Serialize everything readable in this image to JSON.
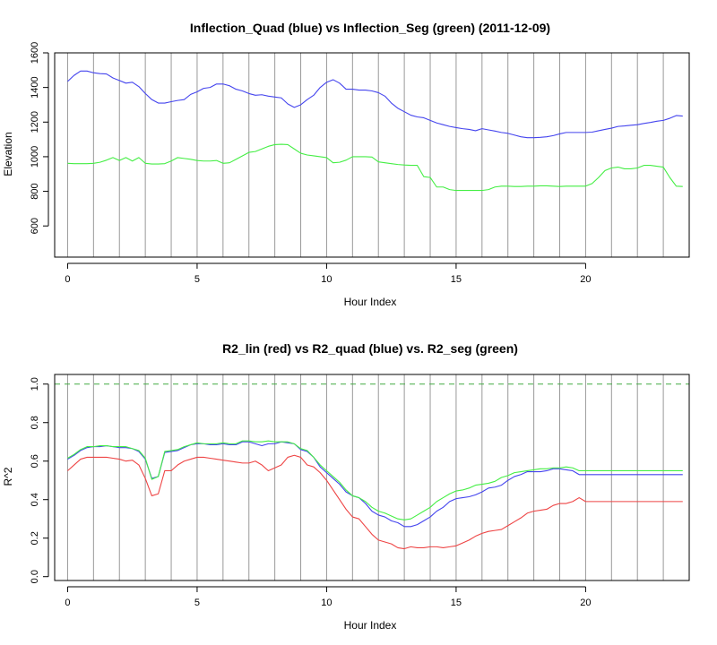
{
  "chart_data": [
    {
      "type": "line",
      "title": "Inflection_Quad (blue) vs Inflection_Seg (green) (2011-12-09)",
      "xlabel": "Hour Index",
      "ylabel": "Elevation",
      "xlim": [
        -0.5,
        24.0
      ],
      "ylim": [
        420,
        1600
      ],
      "xticks": [
        0,
        5,
        10,
        15,
        20
      ],
      "yticks": [
        600,
        800,
        1000,
        1200,
        1400,
        1600
      ],
      "vlines": [
        0,
        1,
        2,
        3,
        4,
        5,
        6,
        7,
        8,
        9,
        10,
        11,
        12,
        13,
        14,
        15,
        16,
        17,
        18,
        19,
        20,
        21,
        22,
        23
      ],
      "vline_color": "#999999",
      "grid": false,
      "x": [
        0,
        0.25,
        0.5,
        0.75,
        1,
        1.25,
        1.5,
        1.75,
        2,
        2.25,
        2.5,
        2.75,
        3,
        3.25,
        3.5,
        3.75,
        4,
        4.25,
        4.5,
        4.75,
        5,
        5.25,
        5.5,
        5.75,
        6,
        6.25,
        6.5,
        6.75,
        7,
        7.25,
        7.5,
        7.75,
        8,
        8.25,
        8.5,
        8.75,
        9,
        9.25,
        9.5,
        9.75,
        10,
        10.25,
        10.5,
        10.75,
        11,
        11.25,
        11.5,
        11.75,
        12,
        12.25,
        12.5,
        12.75,
        13,
        13.25,
        13.5,
        13.75,
        14,
        14.25,
        14.5,
        14.75,
        15,
        15.25,
        15.5,
        15.75,
        16,
        16.25,
        16.5,
        16.75,
        17,
        17.25,
        17.5,
        17.75,
        18,
        18.25,
        18.5,
        18.75,
        19,
        19.25,
        19.5,
        19.75,
        20,
        20.25,
        20.5,
        20.75,
        21,
        21.25,
        21.5,
        21.75,
        22,
        22.25,
        22.5,
        22.75,
        23,
        23.25,
        23.5,
        23.75
      ],
      "series": [
        {
          "color": "#4444ee",
          "values": [
            1435,
            1470,
            1495,
            1495,
            1485,
            1480,
            1478,
            1455,
            1440,
            1425,
            1430,
            1405,
            1365,
            1330,
            1310,
            1310,
            1318,
            1325,
            1330,
            1360,
            1375,
            1395,
            1400,
            1420,
            1420,
            1410,
            1390,
            1380,
            1365,
            1355,
            1358,
            1350,
            1345,
            1340,
            1305,
            1285,
            1300,
            1330,
            1355,
            1400,
            1430,
            1445,
            1425,
            1390,
            1390,
            1385,
            1385,
            1380,
            1370,
            1350,
            1310,
            1280,
            1260,
            1240,
            1230,
            1225,
            1210,
            1195,
            1185,
            1175,
            1168,
            1162,
            1158,
            1150,
            1162,
            1155,
            1148,
            1140,
            1135,
            1125,
            1115,
            1110,
            1110,
            1112,
            1115,
            1122,
            1132,
            1140,
            1140,
            1140,
            1140,
            1142,
            1150,
            1158,
            1165,
            1175,
            1178,
            1182,
            1185,
            1192,
            1198,
            1205,
            1210,
            1222,
            1238,
            1235
          ]
        },
        {
          "color": "#44ee44",
          "values": [
            962,
            960,
            960,
            960,
            962,
            968,
            980,
            995,
            978,
            995,
            975,
            995,
            962,
            958,
            958,
            960,
            975,
            995,
            990,
            985,
            978,
            975,
            975,
            978,
            962,
            965,
            985,
            1005,
            1025,
            1030,
            1045,
            1060,
            1070,
            1072,
            1070,
            1045,
            1020,
            1010,
            1005,
            1000,
            995,
            965,
            968,
            980,
            1000,
            1000,
            1000,
            998,
            970,
            965,
            960,
            955,
            952,
            950,
            950,
            885,
            880,
            825,
            825,
            810,
            805,
            805,
            805,
            805,
            805,
            810,
            825,
            830,
            830,
            828,
            828,
            830,
            830,
            832,
            832,
            830,
            828,
            830,
            830,
            830,
            830,
            845,
            880,
            920,
            935,
            940,
            930,
            930,
            935,
            950,
            950,
            945,
            940,
            880,
            830,
            828
          ]
        }
      ]
    },
    {
      "type": "line",
      "title": "R2_lin (red) vs R2_quad (blue) vs. R2_seg (green)",
      "xlabel": "Hour Index",
      "ylabel": "R^2",
      "xlim": [
        -0.5,
        24.0
      ],
      "ylim": [
        -0.02,
        1.05
      ],
      "xticks": [
        0,
        5,
        10,
        15,
        20
      ],
      "yticks": [
        0.0,
        0.2,
        0.4,
        0.6,
        0.8,
        1.0
      ],
      "ytick_labels": [
        "0.0",
        "0.2",
        "0.4",
        "0.6",
        "0.8",
        "1.0"
      ],
      "vlines": [
        0,
        1,
        2,
        3,
        4,
        5,
        6,
        7,
        8,
        9,
        10,
        11,
        12,
        13,
        14,
        15,
        16,
        17,
        18,
        19,
        20,
        21,
        22,
        23
      ],
      "vline_color": "#999999",
      "grid": false,
      "hline": {
        "y": 1.0,
        "color": "#44aa44",
        "style": "dashed"
      },
      "x": [
        0,
        0.25,
        0.5,
        0.75,
        1,
        1.25,
        1.5,
        1.75,
        2,
        2.25,
        2.5,
        2.75,
        3,
        3.25,
        3.5,
        3.75,
        4,
        4.25,
        4.5,
        4.75,
        5,
        5.25,
        5.5,
        5.75,
        6,
        6.25,
        6.5,
        6.75,
        7,
        7.25,
        7.5,
        7.75,
        8,
        8.25,
        8.5,
        8.75,
        9,
        9.25,
        9.5,
        9.75,
        10,
        10.25,
        10.5,
        10.75,
        11,
        11.25,
        11.5,
        11.75,
        12,
        12.25,
        12.5,
        12.75,
        13,
        13.25,
        13.5,
        13.75,
        14,
        14.25,
        14.5,
        14.75,
        15,
        15.25,
        15.5,
        15.75,
        16,
        16.25,
        16.5,
        16.75,
        17,
        17.25,
        17.5,
        17.75,
        18,
        18.25,
        18.5,
        18.75,
        19,
        19.25,
        19.5,
        19.75,
        20,
        20.25,
        20.5,
        20.75,
        21,
        21.25,
        21.5,
        21.75,
        22,
        22.25,
        22.5,
        22.75,
        23,
        23.25,
        23.5,
        23.75
      ],
      "series": [
        {
          "color": "#ee4444",
          "values": [
            0.55,
            0.58,
            0.61,
            0.62,
            0.62,
            0.62,
            0.62,
            0.615,
            0.61,
            0.6,
            0.605,
            0.58,
            0.51,
            0.42,
            0.43,
            0.55,
            0.55,
            0.58,
            0.6,
            0.61,
            0.62,
            0.62,
            0.615,
            0.61,
            0.605,
            0.6,
            0.595,
            0.59,
            0.59,
            0.6,
            0.58,
            0.55,
            0.565,
            0.58,
            0.62,
            0.63,
            0.62,
            0.58,
            0.57,
            0.54,
            0.5,
            0.45,
            0.4,
            0.35,
            0.31,
            0.3,
            0.26,
            0.22,
            0.19,
            0.18,
            0.17,
            0.15,
            0.145,
            0.155,
            0.15,
            0.15,
            0.155,
            0.155,
            0.15,
            0.155,
            0.16,
            0.175,
            0.19,
            0.21,
            0.225,
            0.235,
            0.24,
            0.245,
            0.265,
            0.285,
            0.305,
            0.33,
            0.34,
            0.345,
            0.35,
            0.37,
            0.38,
            0.38,
            0.39,
            0.41,
            0.39,
            0.39,
            0.39,
            0.39,
            0.39,
            0.39,
            0.39,
            0.39,
            0.39,
            0.39,
            0.39,
            0.39,
            0.39,
            0.39,
            0.39,
            0.39
          ]
        },
        {
          "color": "#4444ee",
          "values": [
            0.61,
            0.63,
            0.655,
            0.67,
            0.675,
            0.675,
            0.68,
            0.675,
            0.67,
            0.67,
            0.665,
            0.65,
            0.61,
            0.51,
            0.52,
            0.645,
            0.65,
            0.655,
            0.67,
            0.685,
            0.69,
            0.69,
            0.685,
            0.685,
            0.69,
            0.685,
            0.685,
            0.7,
            0.7,
            0.69,
            0.68,
            0.69,
            0.69,
            0.7,
            0.695,
            0.69,
            0.66,
            0.65,
            0.62,
            0.57,
            0.54,
            0.51,
            0.48,
            0.44,
            0.42,
            0.41,
            0.38,
            0.34,
            0.32,
            0.31,
            0.29,
            0.28,
            0.26,
            0.26,
            0.27,
            0.29,
            0.31,
            0.34,
            0.36,
            0.39,
            0.405,
            0.41,
            0.415,
            0.425,
            0.44,
            0.46,
            0.465,
            0.475,
            0.5,
            0.52,
            0.53,
            0.545,
            0.545,
            0.545,
            0.55,
            0.56,
            0.56,
            0.555,
            0.55,
            0.53,
            0.53,
            0.53,
            0.53,
            0.53,
            0.53,
            0.53,
            0.53,
            0.53,
            0.53,
            0.53,
            0.53,
            0.53,
            0.53,
            0.53,
            0.53,
            0.53
          ]
        },
        {
          "color": "#44ee44",
          "values": [
            0.615,
            0.635,
            0.66,
            0.675,
            0.675,
            0.68,
            0.68,
            0.675,
            0.675,
            0.675,
            0.665,
            0.655,
            0.615,
            0.505,
            0.52,
            0.65,
            0.655,
            0.66,
            0.675,
            0.685,
            0.695,
            0.69,
            0.69,
            0.69,
            0.695,
            0.69,
            0.69,
            0.705,
            0.705,
            0.7,
            0.7,
            0.705,
            0.7,
            0.7,
            0.7,
            0.69,
            0.665,
            0.655,
            0.62,
            0.58,
            0.55,
            0.52,
            0.49,
            0.45,
            0.42,
            0.41,
            0.39,
            0.36,
            0.34,
            0.33,
            0.315,
            0.3,
            0.295,
            0.3,
            0.32,
            0.34,
            0.36,
            0.39,
            0.41,
            0.43,
            0.445,
            0.45,
            0.46,
            0.475,
            0.48,
            0.485,
            0.495,
            0.515,
            0.525,
            0.54,
            0.545,
            0.55,
            0.555,
            0.56,
            0.56,
            0.565,
            0.565,
            0.57,
            0.565,
            0.55,
            0.55,
            0.55,
            0.55,
            0.55,
            0.55,
            0.55,
            0.55,
            0.55,
            0.55,
            0.55,
            0.55,
            0.55,
            0.55,
            0.55,
            0.55,
            0.55
          ]
        }
      ]
    }
  ]
}
